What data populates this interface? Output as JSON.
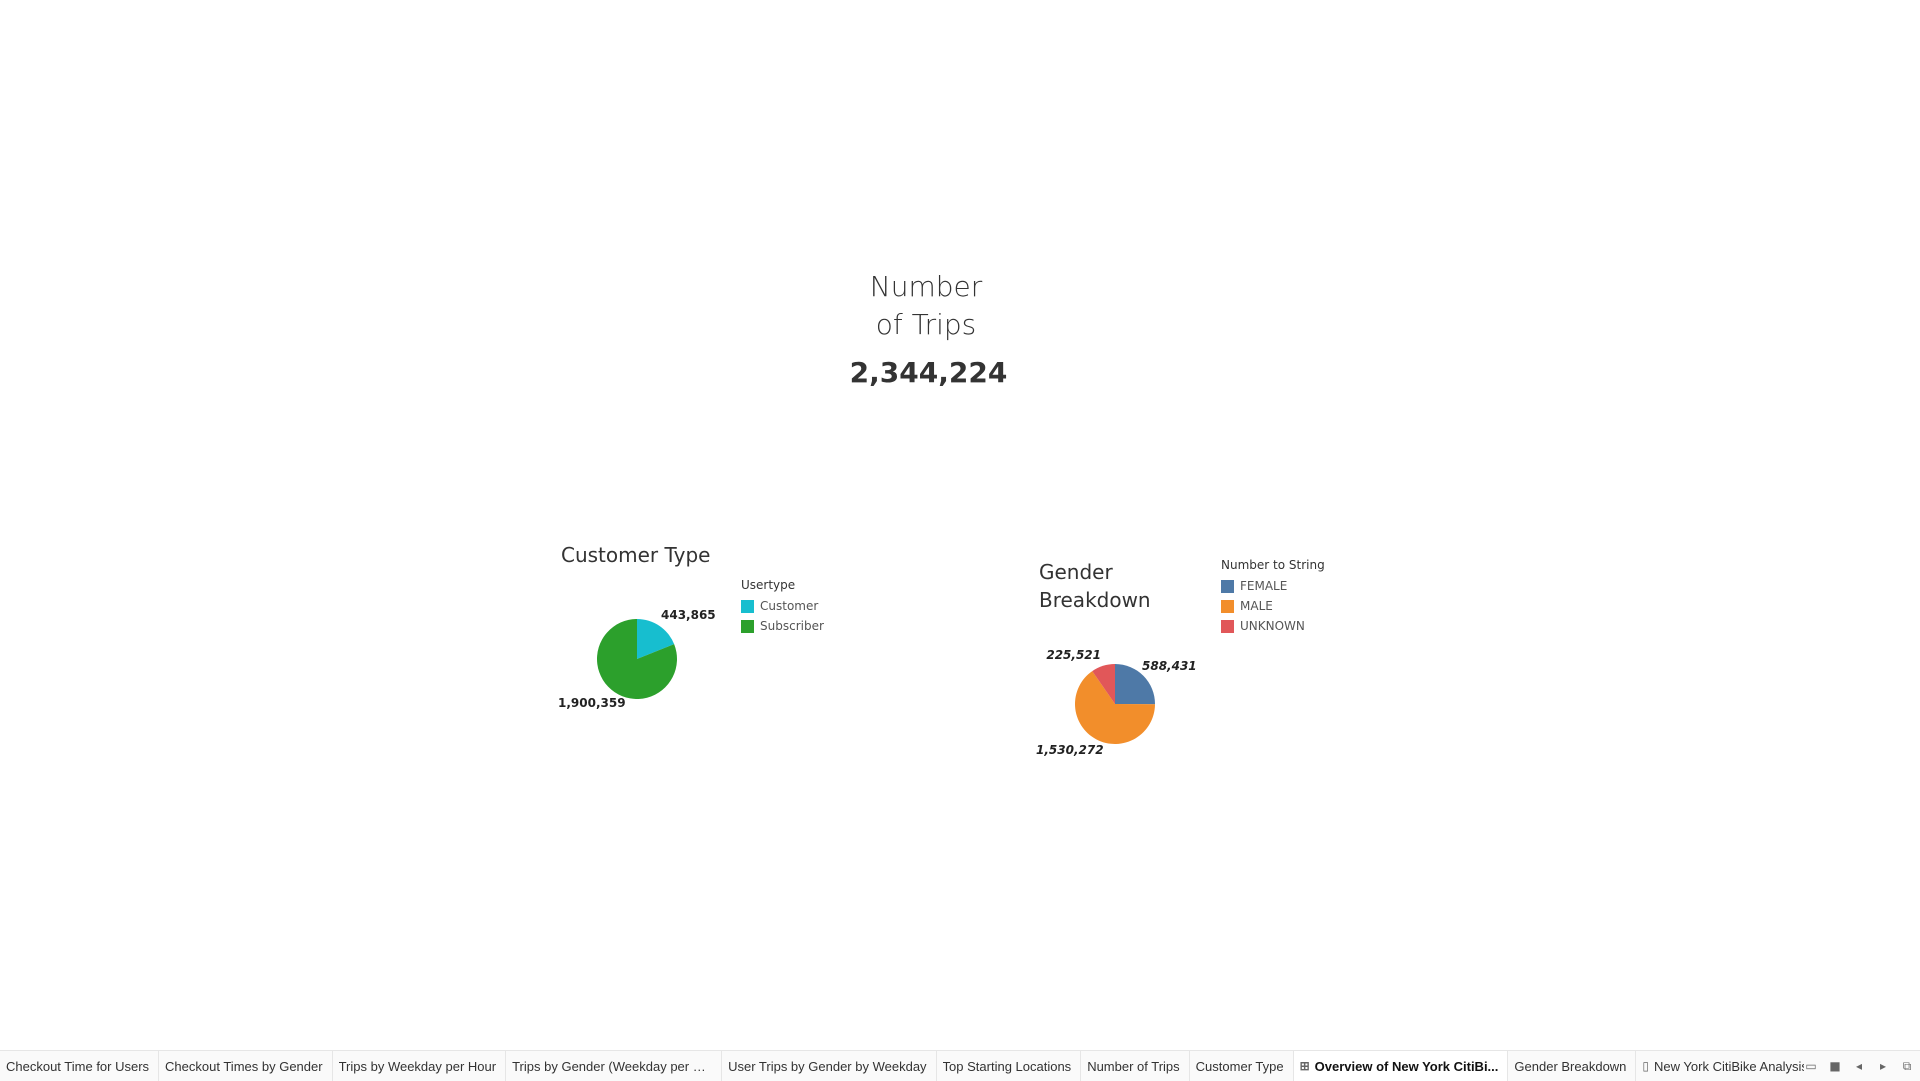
{
  "kpi": {
    "title_line1": "Number",
    "title_line2": "of Trips",
    "value": "2,344,224"
  },
  "chart_data": [
    {
      "type": "pie",
      "title": "Customer Type",
      "legend_title": "Usertype",
      "legend_position": "right",
      "categories": [
        "Customer",
        "Subscriber"
      ],
      "values": [
        443865,
        1900359
      ],
      "labels": [
        "443,865",
        "1,900,359"
      ],
      "colors": [
        "#17becf",
        "#2ca02c"
      ]
    },
    {
      "type": "pie",
      "title": "Gender Breakdown",
      "legend_title": "Number to String",
      "legend_position": "right",
      "categories": [
        "FEMALE",
        "MALE",
        "UNKNOWN"
      ],
      "values": [
        588431,
        1530272,
        225521
      ],
      "labels": [
        "588,431",
        "1,530,272",
        "225,521"
      ],
      "colors": [
        "#4e79a7",
        "#f28e2b",
        "#e15759"
      ]
    }
  ],
  "tabs": [
    {
      "label": "Checkout Time for Users",
      "icon": "",
      "active": false
    },
    {
      "label": "Checkout Times by Gender",
      "icon": "",
      "active": false
    },
    {
      "label": "Trips by Weekday per Hour",
      "icon": "",
      "active": false
    },
    {
      "label": "Trips by Gender (Weekday per H...",
      "icon": "",
      "active": false
    },
    {
      "label": "User Trips by Gender by Weekday",
      "icon": "",
      "active": false
    },
    {
      "label": "Top Starting Locations",
      "icon": "",
      "active": false
    },
    {
      "label": "Number of Trips",
      "icon": "",
      "active": false
    },
    {
      "label": "Customer Type",
      "icon": "",
      "active": false
    },
    {
      "label": "Overview of New York CitiBi...",
      "icon": "dashboard-icon",
      "active": true
    },
    {
      "label": "Gender Breakdown",
      "icon": "",
      "active": false
    },
    {
      "label": "New York CitiBike Analysis",
      "icon": "story-icon",
      "active": false
    }
  ]
}
